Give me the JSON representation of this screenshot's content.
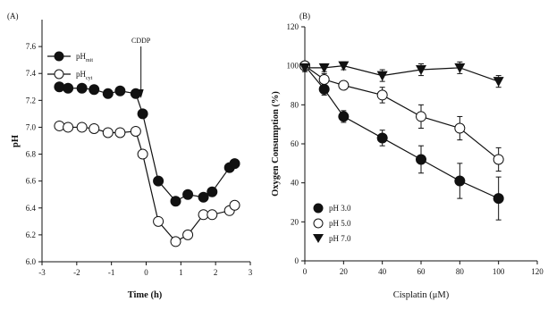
{
  "chart_data": [
    {
      "id": "A",
      "type": "line",
      "panel_label": "(A)",
      "xlabel": "Time (h)",
      "ylabel": "pH",
      "xlim": [
        -3,
        3
      ],
      "ylim": [
        6.0,
        7.8
      ],
      "xticks": [
        -3,
        -2,
        -1,
        0,
        1,
        2,
        3
      ],
      "yticks": [
        6.0,
        6.2,
        6.4,
        6.6,
        6.8,
        7.0,
        7.2,
        7.4,
        7.6
      ],
      "annotation": "CDDP",
      "annotation_x": -0.15,
      "legend_position": "top-left",
      "series": [
        {
          "name": "pH",
          "subscript": "mit",
          "marker": "filled-circle",
          "x": [
            -2.5,
            -2.25,
            -1.85,
            -1.5,
            -1.1,
            -0.75,
            -0.3,
            -0.1,
            0.35,
            0.85,
            1.2,
            1.65,
            1.9,
            2.4,
            2.55
          ],
          "y": [
            7.3,
            7.29,
            7.29,
            7.28,
            7.25,
            7.27,
            7.25,
            7.1,
            6.6,
            6.45,
            6.5,
            6.48,
            6.52,
            6.7,
            6.73
          ]
        },
        {
          "name": "pH",
          "subscript": "cyt",
          "marker": "open-circle",
          "x": [
            -2.5,
            -2.25,
            -1.85,
            -1.5,
            -1.1,
            -0.75,
            -0.3,
            -0.1,
            0.35,
            0.85,
            1.2,
            1.65,
            1.9,
            2.4,
            2.55
          ],
          "y": [
            7.01,
            7.0,
            7.0,
            6.99,
            6.96,
            6.96,
            6.97,
            6.8,
            6.3,
            6.15,
            6.2,
            6.35,
            6.35,
            6.38,
            6.42
          ]
        }
      ]
    },
    {
      "id": "B",
      "type": "line",
      "panel_label": "(B)",
      "xlabel": "Cisplatin (μM)",
      "ylabel": "Oxygen Consumption (%)",
      "xlim": [
        0,
        120
      ],
      "ylim": [
        0,
        120
      ],
      "xticks": [
        0,
        20,
        40,
        60,
        80,
        100,
        120
      ],
      "yticks": [
        0,
        20,
        40,
        60,
        80,
        100,
        120
      ],
      "legend_position": "bottom-left",
      "series": [
        {
          "name": "pH 3.0",
          "marker": "filled-circle",
          "x": [
            0,
            10,
            20,
            40,
            60,
            80,
            100
          ],
          "y": [
            100,
            88,
            74,
            63,
            52,
            41,
            32
          ],
          "err": [
            2,
            3,
            3,
            4,
            7,
            9,
            11
          ]
        },
        {
          "name": "pH 5.0",
          "marker": "open-circle",
          "x": [
            0,
            10,
            20,
            40,
            60,
            80,
            100
          ],
          "y": [
            100,
            93,
            90,
            85,
            74,
            68,
            52
          ],
          "err": [
            2,
            3,
            2,
            4,
            6,
            6,
            6
          ]
        },
        {
          "name": "pH 7.0",
          "marker": "filled-triangle-down",
          "x": [
            0,
            10,
            20,
            40,
            60,
            80,
            100
          ],
          "y": [
            99,
            99,
            100,
            95,
            98,
            99,
            92
          ],
          "err": [
            2,
            2,
            2,
            3,
            3,
            3,
            3
          ]
        }
      ]
    }
  ]
}
